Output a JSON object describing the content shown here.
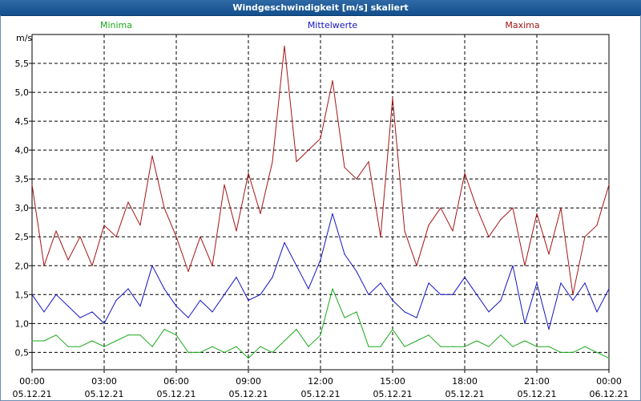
{
  "window": {
    "title": "Windgeschwindigkeit [m/s] skaliert"
  },
  "chart_data": {
    "type": "line",
    "title": "Windgeschwindigkeit [m/s] skaliert",
    "ylabel": "m/s",
    "xlabel": "",
    "ylim": [
      0.2,
      6.0
    ],
    "y_ticks": [
      {
        "value": 0.5,
        "label": "0,5"
      },
      {
        "value": 1.0,
        "label": "1,0"
      },
      {
        "value": 1.5,
        "label": "1,5"
      },
      {
        "value": 2.0,
        "label": "2,0"
      },
      {
        "value": 2.5,
        "label": "2,5"
      },
      {
        "value": 3.0,
        "label": "3,0"
      },
      {
        "value": 3.5,
        "label": "3,5"
      },
      {
        "value": 4.0,
        "label": "4,0"
      },
      {
        "value": 4.5,
        "label": "4,5"
      },
      {
        "value": 5.0,
        "label": "5,0"
      },
      {
        "value": 5.5,
        "label": "5,5"
      }
    ],
    "x_range_hours": [
      0,
      24
    ],
    "x_ticks": [
      {
        "hour": 0,
        "time": "00:00",
        "date": "05.12.21"
      },
      {
        "hour": 3,
        "time": "03:00",
        "date": "05.12.21"
      },
      {
        "hour": 6,
        "time": "06:00",
        "date": "05.12.21"
      },
      {
        "hour": 9,
        "time": "09:00",
        "date": "05.12.21"
      },
      {
        "hour": 12,
        "time": "12:00",
        "date": "05.12.21"
      },
      {
        "hour": 15,
        "time": "15:00",
        "date": "05.12.21"
      },
      {
        "hour": 18,
        "time": "18:00",
        "date": "05.12.21"
      },
      {
        "hour": 21,
        "time": "21:00",
        "date": "05.12.21"
      },
      {
        "hour": 24,
        "time": "00:00",
        "date": "06.12.21"
      }
    ],
    "grid": true,
    "legend_position": "top",
    "series": [
      {
        "name": "Minima",
        "color": "#1aa81a",
        "x": [
          0,
          0.5,
          1,
          1.5,
          2,
          2.5,
          3,
          3.5,
          4,
          4.5,
          5,
          5.5,
          6,
          6.5,
          7,
          7.5,
          8,
          8.5,
          9,
          9.5,
          10,
          10.5,
          11,
          11.5,
          12,
          12.5,
          13,
          13.5,
          14,
          14.5,
          15,
          15.5,
          16,
          16.5,
          17,
          17.5,
          18,
          18.5,
          19,
          19.5,
          20,
          20.5,
          21,
          21.5,
          22,
          22.5,
          23,
          23.5,
          24
        ],
        "values": [
          0.7,
          0.7,
          0.8,
          0.6,
          0.6,
          0.7,
          0.6,
          0.7,
          0.8,
          0.8,
          0.6,
          0.9,
          0.8,
          0.5,
          0.5,
          0.6,
          0.5,
          0.6,
          0.4,
          0.6,
          0.5,
          0.7,
          0.9,
          0.6,
          0.8,
          1.6,
          1.1,
          1.2,
          0.6,
          0.6,
          0.9,
          0.6,
          0.7,
          0.8,
          0.6,
          0.6,
          0.6,
          0.7,
          0.6,
          0.8,
          0.6,
          0.7,
          0.6,
          0.6,
          0.5,
          0.5,
          0.6,
          0.5,
          0.4
        ]
      },
      {
        "name": "Mittelwerte",
        "color": "#1414c0",
        "x": [
          0,
          0.5,
          1,
          1.5,
          2,
          2.5,
          3,
          3.5,
          4,
          4.5,
          5,
          5.5,
          6,
          6.5,
          7,
          7.5,
          8,
          8.5,
          9,
          9.5,
          10,
          10.5,
          11,
          11.5,
          12,
          12.5,
          13,
          13.5,
          14,
          14.5,
          15,
          15.5,
          16,
          16.5,
          17,
          17.5,
          18,
          18.5,
          19,
          19.5,
          20,
          20.5,
          21,
          21.5,
          22,
          22.5,
          23,
          23.5,
          24
        ],
        "values": [
          1.5,
          1.2,
          1.5,
          1.3,
          1.1,
          1.2,
          1.0,
          1.4,
          1.6,
          1.3,
          2.0,
          1.6,
          1.3,
          1.1,
          1.4,
          1.2,
          1.5,
          1.8,
          1.4,
          1.5,
          1.8,
          2.4,
          2.0,
          1.6,
          2.1,
          2.9,
          2.2,
          1.9,
          1.5,
          1.7,
          1.4,
          1.2,
          1.1,
          1.7,
          1.5,
          1.5,
          1.8,
          1.5,
          1.2,
          1.4,
          2.0,
          1.0,
          1.7,
          0.9,
          1.7,
          1.4,
          1.7,
          1.2,
          1.6
        ]
      },
      {
        "name": "Maxima",
        "color": "#a51414",
        "x": [
          0,
          0.5,
          1,
          1.5,
          2,
          2.5,
          3,
          3.5,
          4,
          4.5,
          5,
          5.5,
          6,
          6.5,
          7,
          7.5,
          8,
          8.5,
          9,
          9.5,
          10,
          10.5,
          11,
          11.5,
          12,
          12.5,
          13,
          13.5,
          14,
          14.5,
          15,
          15.5,
          16,
          16.5,
          17,
          17.5,
          18,
          18.5,
          19,
          19.5,
          20,
          20.5,
          21,
          21.5,
          22,
          22.5,
          23,
          23.5,
          24
        ],
        "values": [
          3.4,
          2.0,
          2.6,
          2.1,
          2.5,
          2.0,
          2.7,
          2.5,
          3.1,
          2.7,
          3.9,
          3.0,
          2.5,
          1.9,
          2.5,
          2.0,
          3.4,
          2.6,
          3.6,
          2.9,
          3.8,
          5.8,
          3.8,
          4.0,
          4.2,
          5.2,
          3.7,
          3.5,
          3.8,
          2.5,
          4.9,
          2.6,
          2.0,
          2.7,
          3.0,
          2.6,
          3.6,
          3.0,
          2.5,
          2.8,
          3.0,
          2.0,
          2.9,
          2.2,
          3.0,
          1.5,
          2.5,
          2.7,
          3.4
        ]
      }
    ]
  }
}
